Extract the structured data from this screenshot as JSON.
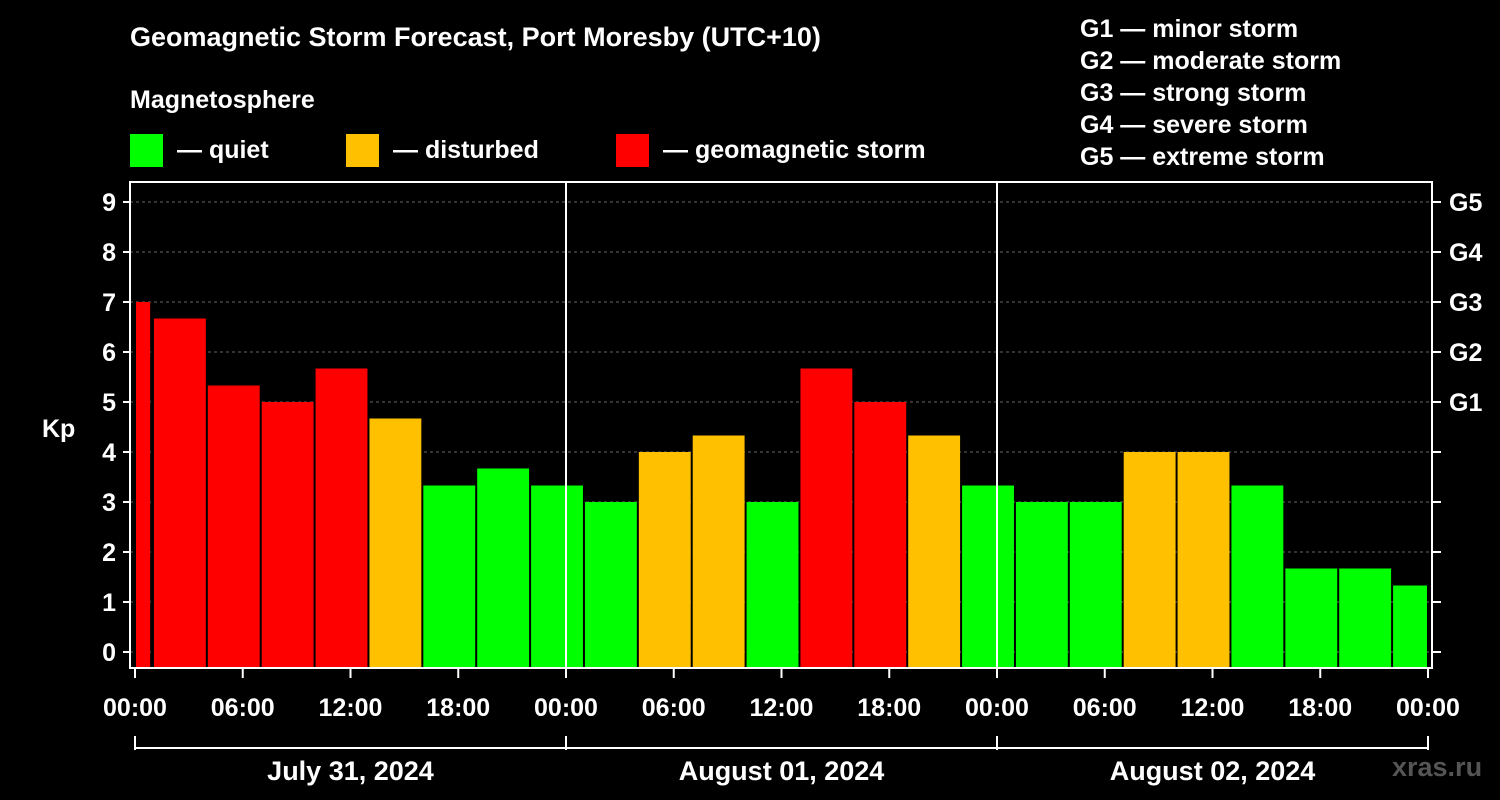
{
  "title": "Geomagnetic Storm Forecast, Port Moresby (UTC+10)",
  "subtitle": "Magnetosphere",
  "legend": [
    {
      "label": "— quiet",
      "color": "#00ff00"
    },
    {
      "label": "— disturbed",
      "color": "#ffc000"
    },
    {
      "label": "— geomagnetic storm",
      "color": "#ff0000"
    }
  ],
  "storm_levels": [
    "G1 — minor storm",
    "G2 — moderate storm",
    "G3 — strong storm",
    "G4 — severe storm",
    "G5 — extreme storm"
  ],
  "watermark": "xras.ru",
  "colors": {
    "quiet": "#00ff00",
    "disturbed": "#ffc000",
    "storm": "#ff0000"
  },
  "chart_data": {
    "type": "bar",
    "ylabel": "Kp",
    "ylim": [
      0,
      9
    ],
    "yticks": [
      "0",
      "1",
      "2",
      "3",
      "4",
      "5",
      "6",
      "7",
      "8",
      "9"
    ],
    "right_labels": [
      {
        "value": 5,
        "label": "G1"
      },
      {
        "value": 6,
        "label": "G2"
      },
      {
        "value": 7,
        "label": "G3"
      },
      {
        "value": 8,
        "label": "G4"
      },
      {
        "value": 9,
        "label": "G5"
      }
    ],
    "x_hours_range": [
      0,
      72
    ],
    "xticks": [
      "00:00",
      "06:00",
      "12:00",
      "18:00",
      "00:00",
      "06:00",
      "12:00",
      "18:00",
      "00:00",
      "06:00",
      "12:00",
      "18:00",
      "00:00"
    ],
    "dates": [
      "July 31, 2024",
      "August 01, 2024",
      "August 02, 2024"
    ],
    "bars": [
      {
        "start": 0,
        "end": 0.9,
        "kp": 7.0,
        "level": "storm"
      },
      {
        "start": 1,
        "end": 4,
        "kp": 6.67,
        "level": "storm"
      },
      {
        "start": 4,
        "end": 7,
        "kp": 5.33,
        "level": "storm"
      },
      {
        "start": 7,
        "end": 10,
        "kp": 5.0,
        "level": "storm"
      },
      {
        "start": 10,
        "end": 13,
        "kp": 5.67,
        "level": "storm"
      },
      {
        "start": 13,
        "end": 16,
        "kp": 4.67,
        "level": "disturbed"
      },
      {
        "start": 16,
        "end": 19,
        "kp": 3.33,
        "level": "quiet"
      },
      {
        "start": 19,
        "end": 22,
        "kp": 3.67,
        "level": "quiet"
      },
      {
        "start": 22,
        "end": 25,
        "kp": 3.33,
        "level": "quiet"
      },
      {
        "start": 25,
        "end": 28,
        "kp": 3.0,
        "level": "quiet"
      },
      {
        "start": 28,
        "end": 31,
        "kp": 4.0,
        "level": "disturbed"
      },
      {
        "start": 31,
        "end": 34,
        "kp": 4.33,
        "level": "disturbed"
      },
      {
        "start": 34,
        "end": 37,
        "kp": 3.0,
        "level": "quiet"
      },
      {
        "start": 37,
        "end": 40,
        "kp": 5.67,
        "level": "storm"
      },
      {
        "start": 40,
        "end": 43,
        "kp": 5.0,
        "level": "storm"
      },
      {
        "start": 43,
        "end": 46,
        "kp": 4.33,
        "level": "disturbed"
      },
      {
        "start": 46,
        "end": 49,
        "kp": 3.33,
        "level": "quiet"
      },
      {
        "start": 49,
        "end": 52,
        "kp": 3.0,
        "level": "quiet"
      },
      {
        "start": 52,
        "end": 55,
        "kp": 3.0,
        "level": "quiet"
      },
      {
        "start": 55,
        "end": 58,
        "kp": 4.0,
        "level": "disturbed"
      },
      {
        "start": 58,
        "end": 61,
        "kp": 4.0,
        "level": "disturbed"
      },
      {
        "start": 61,
        "end": 64,
        "kp": 3.33,
        "level": "quiet"
      },
      {
        "start": 64,
        "end": 67,
        "kp": 1.67,
        "level": "quiet"
      },
      {
        "start": 67,
        "end": 70,
        "kp": 1.67,
        "level": "quiet"
      },
      {
        "start": 70,
        "end": 72,
        "kp": 1.33,
        "level": "quiet"
      }
    ]
  }
}
